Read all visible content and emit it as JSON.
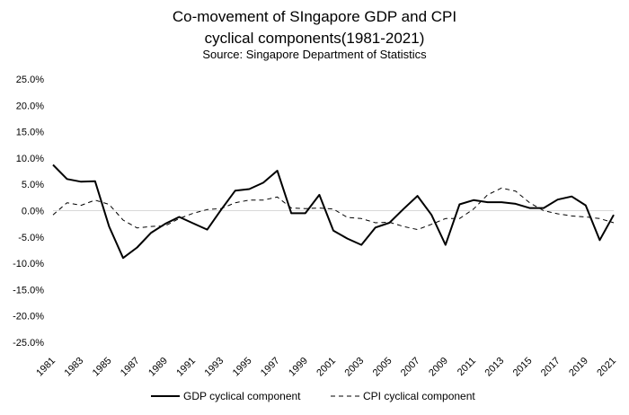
{
  "chart_data": {
    "type": "line",
    "title_line1": "Co-movement of SIngapore GDP and CPI",
    "title_line2": "cyclical components(1981-2021)",
    "subtitle": "Source: Singapore Department of Statistics",
    "x": [
      1981,
      1982,
      1983,
      1984,
      1985,
      1986,
      1987,
      1988,
      1989,
      1990,
      1991,
      1992,
      1993,
      1994,
      1995,
      1996,
      1997,
      1998,
      1999,
      2000,
      2001,
      2002,
      2003,
      2004,
      2005,
      2006,
      2007,
      2008,
      2009,
      2010,
      2011,
      2012,
      2013,
      2014,
      2015,
      2016,
      2017,
      2018,
      2019,
      2020,
      2021
    ],
    "x_tick_labels": [
      "1981",
      "1983",
      "1985",
      "1987",
      "1989",
      "1991",
      "1993",
      "1995",
      "1997",
      "1999",
      "2001",
      "2003",
      "2005",
      "2007",
      "2009",
      "2011",
      "2013",
      "2015",
      "2017",
      "2019",
      "2021"
    ],
    "y_tick_labels": [
      "25.0%",
      "20.0%",
      "15.0%",
      "10.0%",
      "5.0%",
      "0.0%",
      "-5.0%",
      "-10.0%",
      "-15.0%",
      "-20.0%",
      "-25.0%"
    ],
    "ylim": [
      -25,
      25
    ],
    "series": [
      {
        "name": "GDP cyclical component",
        "style": "solid",
        "color": "#000000",
        "values": [
          8.7,
          6.0,
          5.5,
          5.6,
          -3.0,
          -9.0,
          -7.0,
          -4.2,
          -2.5,
          -1.2,
          -2.4,
          -3.6,
          0.2,
          3.8,
          4.1,
          5.3,
          7.6,
          -0.5,
          -0.5,
          3.0,
          -3.8,
          -5.3,
          -6.5,
          -3.2,
          -2.3,
          0.3,
          2.8,
          -0.8,
          -6.5,
          1.2,
          2.0,
          1.6,
          1.6,
          1.3,
          0.5,
          0.5,
          2.1,
          2.7,
          1.0,
          -5.6,
          -0.8
        ]
      },
      {
        "name": "CPI cyclical component",
        "style": "dashed",
        "color": "#000000",
        "values": [
          -0.8,
          1.5,
          1.0,
          2.0,
          1.2,
          -1.8,
          -3.3,
          -3.0,
          -2.9,
          -1.5,
          -0.5,
          0.2,
          0.4,
          1.5,
          2.0,
          2.0,
          2.6,
          0.5,
          0.4,
          0.5,
          0.3,
          -1.3,
          -1.5,
          -2.3,
          -2.2,
          -3.0,
          -3.6,
          -2.6,
          -1.5,
          -1.5,
          0.3,
          3.0,
          4.3,
          3.7,
          1.5,
          0.0,
          -0.6,
          -1.0,
          -1.2,
          -1.5,
          -2.3
        ]
      }
    ],
    "legend_position": "bottom"
  }
}
